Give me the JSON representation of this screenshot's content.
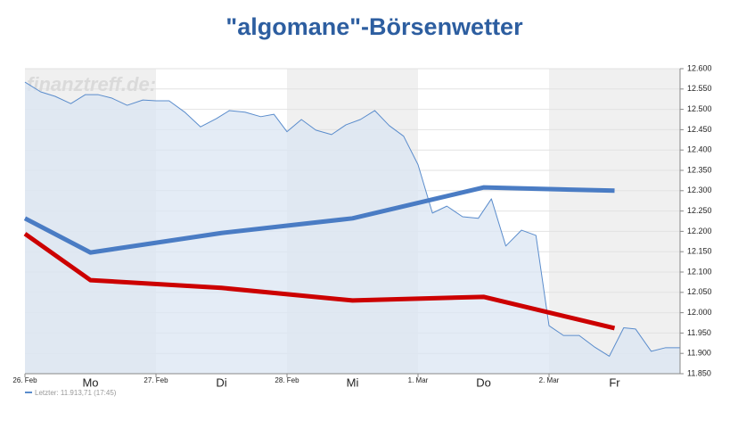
{
  "chart_data": {
    "type": "line",
    "title": "\"algomane\"-Börsenwetter",
    "watermark": "finanztreff.de:",
    "legend_text": "Letzter: 11.913,71 (17:45)",
    "xlim": [
      0,
      5
    ],
    "ylim": [
      11850,
      12600
    ],
    "xticks": [
      {
        "value": 0,
        "label": "26. Feb"
      },
      {
        "value": 1,
        "label": "27. Feb"
      },
      {
        "value": 2,
        "label": "28. Feb"
      },
      {
        "value": 3,
        "label": "1. Mar"
      },
      {
        "value": 4,
        "label": "2. Mar"
      }
    ],
    "day_ticks": [
      {
        "value": 0.5,
        "label": "Mo"
      },
      {
        "value": 1.5,
        "label": "Di"
      },
      {
        "value": 2.5,
        "label": "Mi"
      },
      {
        "value": 3.5,
        "label": "Do"
      },
      {
        "value": 4.5,
        "label": "Fr"
      }
    ],
    "yticks": [
      {
        "value": 11850,
        "label": "11.850"
      },
      {
        "value": 11900,
        "label": "11.900"
      },
      {
        "value": 11950,
        "label": "11.950"
      },
      {
        "value": 12000,
        "label": "12.000"
      },
      {
        "value": 12050,
        "label": "12.050"
      },
      {
        "value": 12100,
        "label": "12.100"
      },
      {
        "value": 12150,
        "label": "12.150"
      },
      {
        "value": 12200,
        "label": "12.200"
      },
      {
        "value": 12250,
        "label": "12.250"
      },
      {
        "value": 12300,
        "label": "12.300"
      },
      {
        "value": 12350,
        "label": "12.350"
      },
      {
        "value": 12400,
        "label": "12.400"
      },
      {
        "value": 12450,
        "label": "12.450"
      },
      {
        "value": 12500,
        "label": "12.500"
      },
      {
        "value": 12550,
        "label": "12.550"
      },
      {
        "value": 12600,
        "label": "12.600"
      }
    ],
    "grid": true,
    "series": [
      {
        "kind": "area",
        "color": "#5a8ccc",
        "fill": "#dbe6f3",
        "width": 1,
        "x": [
          0,
          0.12,
          0.23,
          0.35,
          0.46,
          0.56,
          0.66,
          0.78,
          0.9,
          1.0,
          1.1,
          1.22,
          1.34,
          1.46,
          1.56,
          1.68,
          1.8,
          1.9,
          2.0,
          2.11,
          2.22,
          2.34,
          2.45,
          2.56,
          2.67,
          2.78,
          2.89,
          3.0,
          3.11,
          3.22,
          3.34,
          3.46,
          3.56,
          3.67,
          3.79,
          3.9,
          4.0,
          4.11,
          4.23,
          4.35,
          4.46,
          4.57,
          4.66,
          4.78,
          4.89,
          5.0
        ],
        "values": [
          12567,
          12543,
          12532,
          12514,
          12536,
          12536,
          12528,
          12510,
          12523,
          12521,
          12521,
          12493,
          12457,
          12477,
          12497,
          12493,
          12482,
          12488,
          12445,
          12475,
          12449,
          12438,
          12462,
          12475,
          12497,
          12460,
          12434,
          12364,
          12245,
          12262,
          12236,
          12232,
          12280,
          12164,
          12203,
          12190,
          11968,
          11944,
          11944,
          11915,
          11893,
          11963,
          11960,
          11905,
          11914,
          11914
        ]
      },
      {
        "kind": "line",
        "color": "#4a7cc4",
        "width": 5,
        "x": [
          0,
          0.5,
          1.5,
          2.5,
          3.5,
          4.5
        ],
        "values": [
          12232,
          12148,
          12196,
          12232,
          12308,
          12300
        ]
      },
      {
        "kind": "line",
        "color": "#cc0000",
        "width": 5,
        "x": [
          0,
          0.5,
          1.5,
          2.5,
          3.5,
          4.5
        ],
        "values": [
          12194,
          12080,
          12061,
          12030,
          12039,
          11962
        ]
      }
    ]
  }
}
